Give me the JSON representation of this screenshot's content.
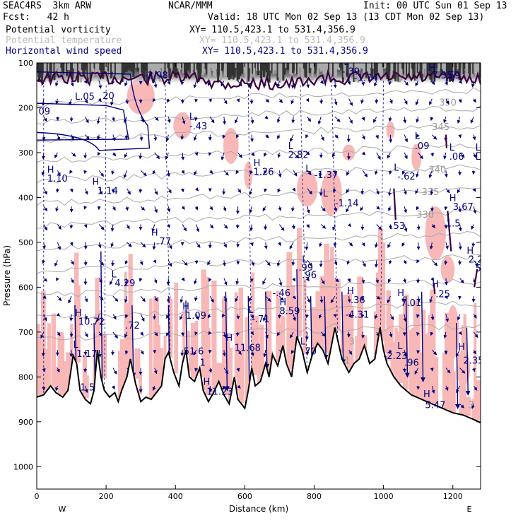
{
  "header": {
    "model": "SEAC4RS  3km ARW",
    "org": "NCAR/MMM",
    "init": "Init: 00 UTC Sun 01 Sep 13",
    "fcst": "Fcst:   42 h",
    "valid": "Valid: 18 UTC Mon 02 Sep 13 (13 CDT Mon 02 Sep 13)",
    "fields": [
      {
        "name": "Potential vorticity",
        "xy": "XY= 110.5,423.1 to 531.4,356.9",
        "color": "#000000"
      },
      {
        "name": "Potential temperature",
        "xy": "XY= 110.5,423.1 to 531.4,356.9",
        "color": "#bbbbbb"
      },
      {
        "name": "Horizontal wind speed",
        "xy": "XY= 110.5,423.1 to 531.4,356.9",
        "color": "#000080"
      }
    ]
  },
  "chart_data": {
    "type": "cross-section",
    "xlabel": "Distance (km)",
    "ylabel": "Pressure (hPa)",
    "xlim": [
      0,
      1280
    ],
    "ylim": [
      1050,
      100
    ],
    "x_ticks": [
      0,
      200,
      400,
      600,
      800,
      1000,
      1200
    ],
    "y_ticks": [
      100,
      200,
      300,
      400,
      500,
      600,
      700,
      800,
      900,
      1000
    ],
    "x_end_labels": {
      "left": "W",
      "right": "E"
    },
    "colors": {
      "pv_fill": "#f8b8b8",
      "pv_contour": "#3a0040",
      "wind": "#000080",
      "theta": "#aaaaaa",
      "terrain": "#000000"
    },
    "theta_labels": [
      {
        "x": 1160,
        "p": 195,
        "text": "350"
      },
      {
        "x": 1140,
        "p": 250,
        "text": "345"
      },
      {
        "x": 1130,
        "p": 345,
        "text": "340"
      },
      {
        "x": 1110,
        "p": 395,
        "text": "335"
      },
      {
        "x": 1095,
        "p": 445,
        "text": "330"
      },
      {
        "x": 1230,
        "p": 130,
        "text": "3"
      },
      {
        "x": 900,
        "p": 728,
        "text": "3"
      },
      {
        "x": 870,
        "p": 770,
        "text": "31"
      },
      {
        "x": 1245,
        "p": 870,
        "text": "3"
      }
    ],
    "hl_labels": [
      {
        "x": 5,
        "p": 215,
        "kind": "",
        "value": "09"
      },
      {
        "x": 110,
        "p": 182,
        "kind": "L",
        "value": ".05"
      },
      {
        "x": 190,
        "p": 180,
        "kind": "",
        "value": "20"
      },
      {
        "x": 310,
        "p": 135,
        "kind": "",
        "value": "-2.98"
      },
      {
        "x": 885,
        "p": 105,
        "kind": "L",
        "value": ""
      },
      {
        "x": 880,
        "p": 126,
        "kind": "",
        "value": "-.39"
      },
      {
        "x": 915,
        "p": 140,
        "kind": "",
        "value": "-1.74"
      },
      {
        "x": 1130,
        "p": 118,
        "kind": "H",
        "value": ""
      },
      {
        "x": 1140,
        "p": 135,
        "kind": "",
        "value": "7.35"
      },
      {
        "x": 1180,
        "p": 135,
        "kind": "",
        "value": ".59"
      },
      {
        "x": 440,
        "p": 227,
        "kind": "L",
        "value": ""
      },
      {
        "x": 440,
        "p": 248,
        "kind": "",
        "value": "-.43"
      },
      {
        "x": 1090,
        "p": 270,
        "kind": "L",
        "value": ""
      },
      {
        "x": 1090,
        "p": 292,
        "kind": "",
        "value": ".09"
      },
      {
        "x": 1190,
        "p": 295,
        "kind": "L",
        "value": ""
      },
      {
        "x": 1190,
        "p": 316,
        "kind": "",
        "value": ".06"
      },
      {
        "x": 1265,
        "p": 295,
        "kind": "L",
        "value": ""
      },
      {
        "x": 1265,
        "p": 316,
        "kind": "L",
        "value": ""
      },
      {
        "x": 725,
        "p": 292,
        "kind": "L",
        "value": ""
      },
      {
        "x": 725,
        "p": 312,
        "kind": "",
        "value": "2.82"
      },
      {
        "x": 30,
        "p": 345,
        "kind": "H",
        "value": ""
      },
      {
        "x": 30,
        "p": 365,
        "kind": "",
        "value": "1.10"
      },
      {
        "x": 625,
        "p": 330,
        "kind": "H",
        "value": ""
      },
      {
        "x": 625,
        "p": 350,
        "kind": "",
        "value": "1.26"
      },
      {
        "x": 775,
        "p": 343,
        "kind": "L",
        "value": ""
      },
      {
        "x": 800,
        "p": 357,
        "kind": "",
        "value": "-1.37"
      },
      {
        "x": 1030,
        "p": 340,
        "kind": "L",
        "value": ""
      },
      {
        "x": 1040,
        "p": 360,
        "kind": "",
        "value": "-.62"
      },
      {
        "x": 160,
        "p": 372,
        "kind": "H",
        "value": ""
      },
      {
        "x": 175,
        "p": 392,
        "kind": "",
        "value": "1.14"
      },
      {
        "x": 825,
        "p": 398,
        "kind": "L",
        "value": ""
      },
      {
        "x": 860,
        "p": 420,
        "kind": "",
        "value": "-1.14"
      },
      {
        "x": 1190,
        "p": 408,
        "kind": "H",
        "value": ""
      },
      {
        "x": 1200,
        "p": 428,
        "kind": "",
        "value": "3.67"
      },
      {
        "x": 1020,
        "p": 470,
        "kind": "",
        "value": ".53"
      },
      {
        "x": 1180,
        "p": 465,
        "kind": "",
        "value": "1.5"
      },
      {
        "x": 330,
        "p": 485,
        "kind": "H",
        "value": ""
      },
      {
        "x": 345,
        "p": 505,
        "kind": "",
        "value": ".77"
      },
      {
        "x": 1240,
        "p": 525,
        "kind": "H",
        "value": ""
      },
      {
        "x": 1245,
        "p": 545,
        "kind": "",
        "value": "2.2"
      },
      {
        "x": 1265,
        "p": 565,
        "kind": "",
        "value": "5"
      },
      {
        "x": 765,
        "p": 545,
        "kind": "L",
        "value": ""
      },
      {
        "x": 755,
        "p": 563,
        "kind": "",
        "value": ".99"
      },
      {
        "x": 765,
        "p": 580,
        "kind": "",
        "value": ".96"
      },
      {
        "x": 215,
        "p": 578,
        "kind": "L",
        "value": ""
      },
      {
        "x": 225,
        "p": 598,
        "kind": "",
        "value": "4.29"
      },
      {
        "x": 1140,
        "p": 600,
        "kind": "H",
        "value": ""
      },
      {
        "x": 1150,
        "p": 622,
        "kind": "",
        "value": ".25"
      },
      {
        "x": 680,
        "p": 620,
        "kind": "",
        "value": "-.46"
      },
      {
        "x": 895,
        "p": 615,
        "kind": "H",
        "value": ""
      },
      {
        "x": 905,
        "p": 636,
        "kind": "",
        "value": ".36"
      },
      {
        "x": 1040,
        "p": 620,
        "kind": "H",
        "value": ""
      },
      {
        "x": 1050,
        "p": 642,
        "kind": "",
        "value": "7.01"
      },
      {
        "x": 110,
        "p": 664,
        "kind": "H",
        "value": ""
      },
      {
        "x": 120,
        "p": 684,
        "kind": "",
        "value": "10.72"
      },
      {
        "x": 420,
        "p": 650,
        "kind": "H",
        "value": ""
      },
      {
        "x": 430,
        "p": 670,
        "kind": "",
        "value": "1.09"
      },
      {
        "x": 610,
        "p": 658,
        "kind": "L",
        "value": ""
      },
      {
        "x": 620,
        "p": 678,
        "kind": "",
        "value": "-.71"
      },
      {
        "x": 700,
        "p": 640,
        "kind": "H",
        "value": ""
      },
      {
        "x": 700,
        "p": 660,
        "kind": "",
        "value": "8.59"
      },
      {
        "x": 890,
        "p": 668,
        "kind": "",
        "value": "-4.31"
      },
      {
        "x": 255,
        "p": 692,
        "kind": "",
        "value": ".72"
      },
      {
        "x": 105,
        "p": 735,
        "kind": "L",
        "value": ""
      },
      {
        "x": 115,
        "p": 755,
        "kind": "",
        "value": "1.17"
      },
      {
        "x": 415,
        "p": 750,
        "kind": "",
        "value": ".51"
      },
      {
        "x": 465,
        "p": 750,
        "kind": "",
        "value": "6"
      },
      {
        "x": 545,
        "p": 720,
        "kind": "H",
        "value": ""
      },
      {
        "x": 570,
        "p": 742,
        "kind": "",
        "value": "11.68"
      },
      {
        "x": 760,
        "p": 728,
        "kind": "L",
        "value": ""
      },
      {
        "x": 765,
        "p": 750,
        "kind": "",
        "value": ".70"
      },
      {
        "x": 1000,
        "p": 760,
        "kind": "",
        "value": "-2.23"
      },
      {
        "x": 1040,
        "p": 738,
        "kind": "L",
        "value": ""
      },
      {
        "x": 1060,
        "p": 775,
        "kind": "",
        "value": ".96"
      },
      {
        "x": 1215,
        "p": 740,
        "kind": "H",
        "value": ""
      },
      {
        "x": 1230,
        "p": 770,
        "kind": "",
        "value": "2.35"
      },
      {
        "x": 470,
        "p": 775,
        "kind": "",
        "value": "1"
      },
      {
        "x": 480,
        "p": 818,
        "kind": "H",
        "value": ""
      },
      {
        "x": 490,
        "p": 840,
        "kind": "",
        "value": "11.23"
      },
      {
        "x": 125,
        "p": 830,
        "kind": "",
        "value": "1.5"
      },
      {
        "x": 1115,
        "p": 845,
        "kind": "H",
        "value": ""
      },
      {
        "x": 1120,
        "p": 870,
        "kind": "",
        "value": "5.47"
      }
    ]
  }
}
